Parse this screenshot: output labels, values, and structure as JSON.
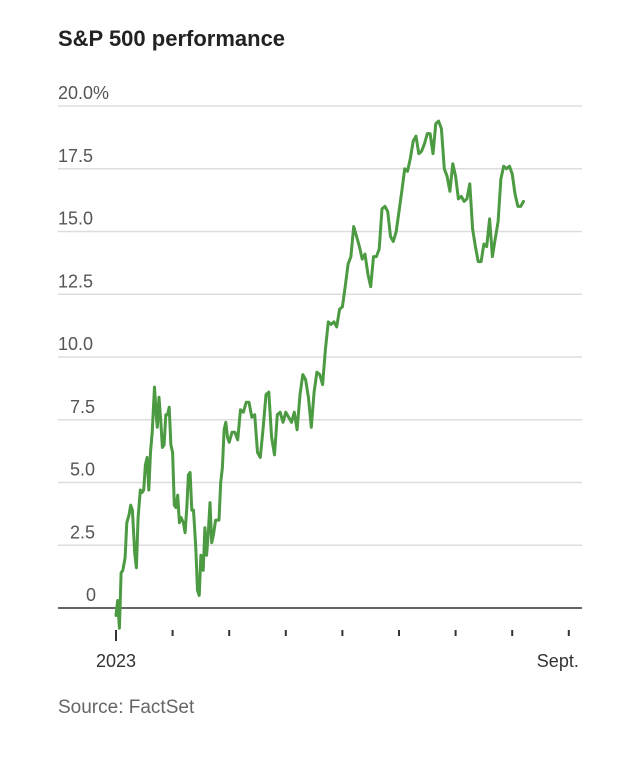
{
  "title": "S&P 500 performance",
  "source": "Source: FactSet",
  "colors": {
    "line": "#4c9a42",
    "grid": "#dddddd",
    "axis": "#333333"
  },
  "chart_data": {
    "type": "line",
    "title": "S&P 500 performance",
    "xlabel": "",
    "ylabel": "",
    "ylim": [
      0,
      20
    ],
    "y_ticks": [
      {
        "value": 0,
        "label": "0"
      },
      {
        "value": 2.5,
        "label": "2.5"
      },
      {
        "value": 5,
        "label": "5.0"
      },
      {
        "value": 7.5,
        "label": "7.5"
      },
      {
        "value": 10,
        "label": "10.0"
      },
      {
        "value": 12.5,
        "label": "12.5"
      },
      {
        "value": 15,
        "label": "15.0"
      },
      {
        "value": 17.5,
        "label": "17.5"
      },
      {
        "value": 20,
        "label": "20.0%"
      }
    ],
    "x_labels": [
      {
        "label": "2023",
        "month": 0
      },
      {
        "label": "Sept.",
        "month": 8
      }
    ],
    "month_ticks": [
      0,
      1,
      2,
      3,
      4,
      5,
      6,
      7,
      8
    ],
    "grid": true,
    "series": [
      {
        "values": [
          [
            0.0,
            -0.3
          ],
          [
            0.03,
            0.3
          ],
          [
            0.06,
            -0.8
          ],
          [
            0.09,
            1.4
          ],
          [
            0.12,
            1.5
          ],
          [
            0.16,
            2.0
          ],
          [
            0.19,
            3.4
          ],
          [
            0.23,
            3.7
          ],
          [
            0.26,
            4.1
          ],
          [
            0.29,
            3.9
          ],
          [
            0.33,
            2.2
          ],
          [
            0.36,
            1.6
          ],
          [
            0.39,
            3.6
          ],
          [
            0.43,
            4.7
          ],
          [
            0.46,
            4.6
          ],
          [
            0.49,
            4.7
          ],
          [
            0.52,
            5.7
          ],
          [
            0.55,
            6.0
          ],
          [
            0.58,
            4.7
          ],
          [
            0.61,
            6.2
          ],
          [
            0.64,
            7.0
          ],
          [
            0.68,
            8.8
          ],
          [
            0.71,
            7.7
          ],
          [
            0.73,
            7.2
          ],
          [
            0.76,
            8.4
          ],
          [
            0.79,
            7.5
          ],
          [
            0.82,
            6.4
          ],
          [
            0.85,
            6.5
          ],
          [
            0.88,
            7.7
          ],
          [
            0.91,
            7.7
          ],
          [
            0.94,
            8.0
          ],
          [
            0.97,
            6.5
          ],
          [
            1.0,
            6.2
          ],
          [
            1.03,
            4.1
          ],
          [
            1.06,
            4.0
          ],
          [
            1.09,
            4.5
          ],
          [
            1.12,
            3.4
          ],
          [
            1.15,
            3.6
          ],
          [
            1.19,
            3.4
          ],
          [
            1.22,
            3.0
          ],
          [
            1.25,
            4.0
          ],
          [
            1.28,
            5.3
          ],
          [
            1.31,
            5.4
          ],
          [
            1.34,
            3.9
          ],
          [
            1.37,
            3.9
          ],
          [
            1.41,
            2.4
          ],
          [
            1.44,
            0.7
          ],
          [
            1.47,
            0.5
          ],
          [
            1.5,
            2.1
          ],
          [
            1.54,
            1.5
          ],
          [
            1.57,
            3.2
          ],
          [
            1.6,
            2.1
          ],
          [
            1.63,
            3.0
          ],
          [
            1.66,
            4.2
          ],
          [
            1.69,
            2.6
          ],
          [
            1.72,
            2.9
          ],
          [
            1.76,
            3.5
          ],
          [
            1.79,
            3.5
          ],
          [
            1.82,
            3.5
          ],
          [
            1.85,
            5.0
          ],
          [
            1.88,
            5.6
          ],
          [
            1.91,
            7.1
          ],
          [
            1.94,
            7.4
          ],
          [
            1.97,
            6.8
          ],
          [
            2.0,
            6.6
          ],
          [
            2.05,
            7.0
          ],
          [
            2.1,
            7.0
          ],
          [
            2.15,
            6.7
          ],
          [
            2.2,
            7.9
          ],
          [
            2.25,
            7.8
          ],
          [
            2.3,
            8.2
          ],
          [
            2.35,
            8.2
          ],
          [
            2.4,
            7.6
          ],
          [
            2.45,
            7.7
          ],
          [
            2.5,
            6.2
          ],
          [
            2.55,
            6.0
          ],
          [
            2.6,
            7.2
          ],
          [
            2.65,
            8.5
          ],
          [
            2.7,
            8.6
          ],
          [
            2.75,
            6.8
          ],
          [
            2.8,
            6.1
          ],
          [
            2.85,
            7.7
          ],
          [
            2.9,
            7.8
          ],
          [
            2.95,
            7.4
          ],
          [
            3.0,
            7.8
          ],
          [
            3.05,
            7.6
          ],
          [
            3.1,
            7.4
          ],
          [
            3.15,
            7.8
          ],
          [
            3.2,
            7.1
          ],
          [
            3.25,
            8.5
          ],
          [
            3.3,
            9.3
          ],
          [
            3.35,
            9.1
          ],
          [
            3.4,
            8.4
          ],
          [
            3.45,
            7.2
          ],
          [
            3.5,
            8.6
          ],
          [
            3.55,
            9.4
          ],
          [
            3.6,
            9.3
          ],
          [
            3.65,
            8.9
          ],
          [
            3.7,
            10.3
          ],
          [
            3.75,
            11.4
          ],
          [
            3.8,
            11.3
          ],
          [
            3.85,
            11.4
          ],
          [
            3.9,
            11.2
          ],
          [
            3.95,
            11.9
          ],
          [
            4.0,
            12.0
          ],
          [
            4.05,
            12.8
          ],
          [
            4.1,
            13.7
          ],
          [
            4.15,
            14.0
          ],
          [
            4.2,
            15.2
          ],
          [
            4.25,
            14.8
          ],
          [
            4.3,
            14.4
          ],
          [
            4.35,
            13.9
          ],
          [
            4.4,
            14.1
          ],
          [
            4.45,
            13.3
          ],
          [
            4.5,
            12.8
          ],
          [
            4.55,
            14.0
          ],
          [
            4.6,
            14.0
          ],
          [
            4.65,
            14.3
          ],
          [
            4.7,
            15.9
          ],
          [
            4.75,
            16.0
          ],
          [
            4.8,
            15.8
          ],
          [
            4.85,
            14.8
          ],
          [
            4.9,
            14.6
          ],
          [
            4.95,
            15.0
          ],
          [
            5.0,
            15.8
          ],
          [
            5.05,
            16.6
          ],
          [
            5.1,
            17.5
          ],
          [
            5.15,
            17.4
          ],
          [
            5.2,
            17.9
          ],
          [
            5.25,
            18.6
          ],
          [
            5.3,
            18.8
          ],
          [
            5.35,
            18.1
          ],
          [
            5.4,
            18.2
          ],
          [
            5.45,
            18.5
          ],
          [
            5.5,
            18.9
          ],
          [
            5.55,
            18.9
          ],
          [
            5.6,
            18.1
          ],
          [
            5.65,
            19.3
          ],
          [
            5.7,
            19.4
          ],
          [
            5.75,
            19.1
          ],
          [
            5.8,
            17.5
          ],
          [
            5.85,
            17.2
          ],
          [
            5.9,
            16.6
          ],
          [
            5.95,
            17.7
          ],
          [
            6.0,
            17.2
          ],
          [
            6.05,
            16.3
          ],
          [
            6.1,
            16.4
          ],
          [
            6.15,
            16.2
          ],
          [
            6.2,
            16.3
          ],
          [
            6.25,
            16.9
          ],
          [
            6.3,
            15.1
          ],
          [
            6.35,
            14.4
          ],
          [
            6.4,
            13.8
          ],
          [
            6.45,
            13.8
          ],
          [
            6.5,
            14.5
          ],
          [
            6.55,
            14.4
          ],
          [
            6.6,
            15.5
          ],
          [
            6.65,
            14.0
          ],
          [
            6.7,
            14.7
          ],
          [
            6.75,
            15.4
          ],
          [
            6.8,
            17.1
          ],
          [
            6.85,
            17.6
          ],
          [
            6.9,
            17.5
          ],
          [
            6.95,
            17.6
          ],
          [
            7.0,
            17.3
          ],
          [
            7.05,
            16.5
          ],
          [
            7.1,
            16.0
          ],
          [
            7.15,
            16.0
          ],
          [
            7.2,
            16.2
          ]
        ]
      }
    ]
  }
}
